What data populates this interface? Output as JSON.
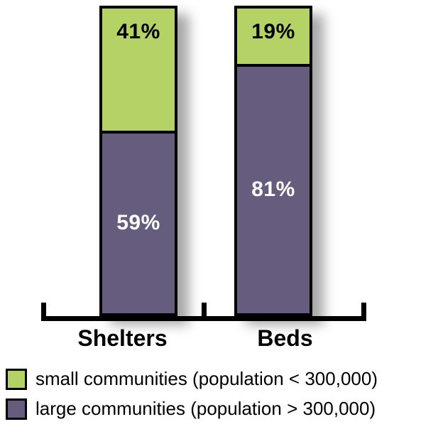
{
  "chart_data": {
    "type": "bar",
    "stacked": true,
    "title": "",
    "xlabel": "",
    "ylabel": "",
    "ylim": [
      0,
      100
    ],
    "value_suffix": "%",
    "grid": false,
    "legend_position": "bottom",
    "categories": [
      "Shelters",
      "Beds"
    ],
    "series": [
      {
        "name": "small communities (population < 300,000)",
        "values": [
          41,
          19
        ],
        "color": "#b4d265",
        "label_color": "#000000"
      },
      {
        "name": "large communities (population > 300,000)",
        "values": [
          59,
          81
        ],
        "color": "#665c7d",
        "label_color": "#ffffff"
      }
    ]
  }
}
